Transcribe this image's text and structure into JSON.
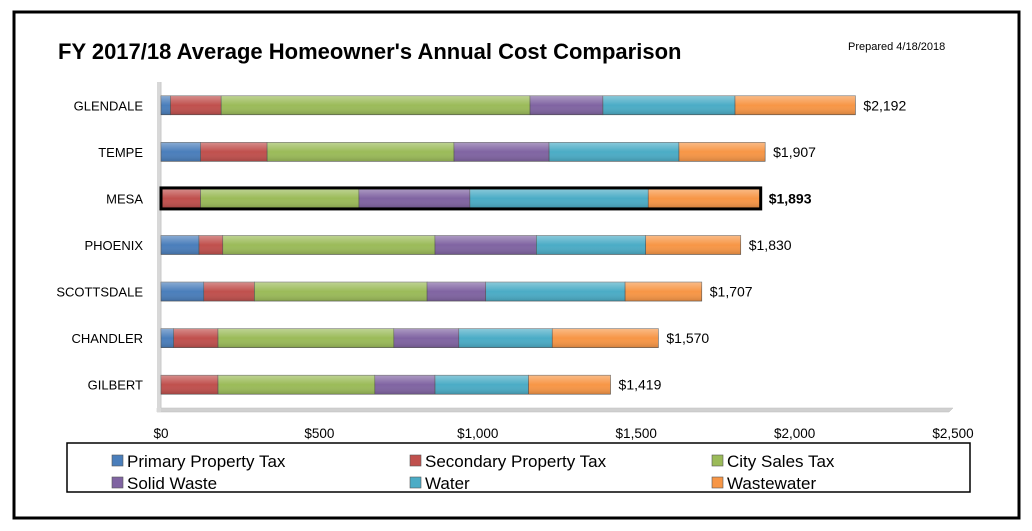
{
  "chart_data": {
    "type": "bar",
    "orientation": "horizontal",
    "stacked": true,
    "title": "FY 2017/18 Average Homeowner's Annual Cost Comparison",
    "note": "Prepared 4/18/2018",
    "categories": [
      "GLENDALE",
      "TEMPE",
      "MESA",
      "PHOENIX",
      "SCOTTSDALE",
      "CHANDLER",
      "GILBERT"
    ],
    "highlight": "MESA",
    "series": [
      {
        "name": "Primary Property Tax",
        "color": "#4a7ebb",
        "values": [
          30,
          125,
          0,
          120,
          135,
          40,
          0
        ]
      },
      {
        "name": "Secondary Property Tax",
        "color": "#c0504d",
        "values": [
          160,
          210,
          125,
          75,
          160,
          140,
          180
        ]
      },
      {
        "name": "City Sales Tax",
        "color": "#9bbb59",
        "values": [
          975,
          590,
          500,
          670,
          545,
          555,
          495
        ]
      },
      {
        "name": "Solid Waste",
        "color": "#8064a2",
        "values": [
          230,
          300,
          350,
          320,
          185,
          205,
          190
        ]
      },
      {
        "name": "Water",
        "color": "#4bacc6",
        "values": [
          417,
          410,
          563,
          345,
          440,
          295,
          295
        ]
      },
      {
        "name": "Wastewater",
        "color": "#f79646",
        "values": [
          380,
          272,
          355,
          300,
          242,
          335,
          259
        ]
      }
    ],
    "totals": [
      "$2,192",
      "$1,907",
      "$1,893",
      "$1,830",
      "$1,707",
      "$1,570",
      "$1,419"
    ],
    "xlim": [
      0,
      2500
    ],
    "xticks": [
      0,
      500,
      1000,
      1500,
      2000,
      2500
    ],
    "xtick_labels": [
      "$0",
      "$500",
      "$1,000",
      "$1,500",
      "$2,000",
      "$2,500"
    ],
    "xlabel": "",
    "ylabel": "",
    "grid": false,
    "legend_position": "bottom"
  }
}
